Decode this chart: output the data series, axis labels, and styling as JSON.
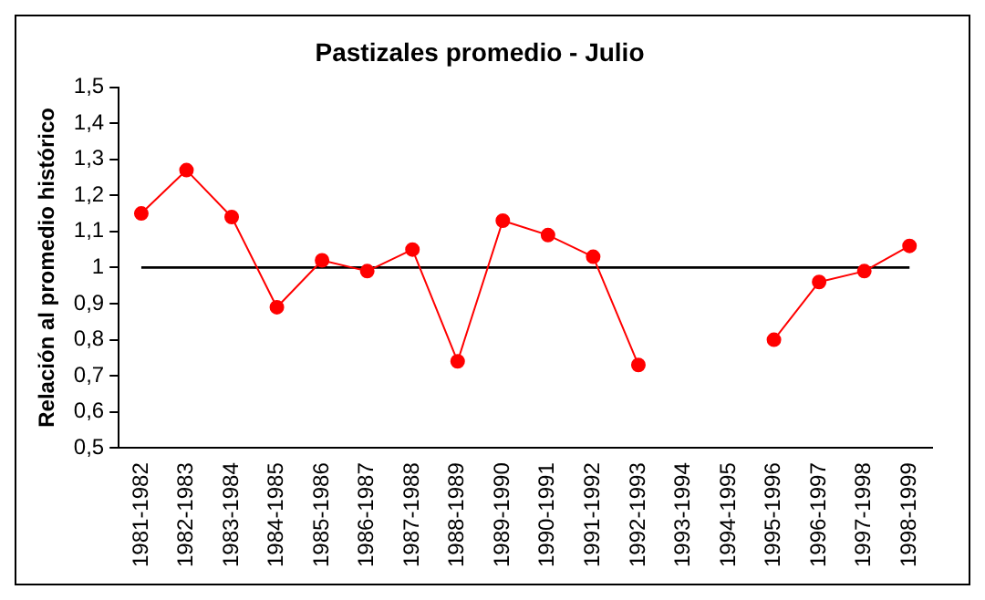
{
  "chart_data": {
    "type": "line",
    "title": "Pastizales promedio - Julio",
    "ylabel": "Relación al promedio histórico",
    "categories": [
      "1981-1982",
      "1982-1983",
      "1983-1984",
      "1984-1985",
      "1985-1986",
      "1986-1987",
      "1987-1988",
      "1988-1989",
      "1989-1990",
      "1990-1991",
      "1991-1992",
      "1992-1993",
      "1993-1994",
      "1994-1995",
      "1995-1996",
      "1996-1997",
      "1997-1998",
      "1998-1999"
    ],
    "series": [
      {
        "color": "#ff0000",
        "values": [
          1.15,
          1.27,
          1.14,
          0.89,
          1.02,
          0.99,
          1.05,
          0.74,
          1.13,
          1.09,
          1.03,
          0.73,
          null,
          null,
          0.8,
          0.96,
          0.99,
          1.06
        ]
      }
    ],
    "ylim": [
      0.5,
      1.5
    ],
    "yticks": [
      {
        "value": 0.5,
        "label": "0,5"
      },
      {
        "value": 0.6,
        "label": "0,6"
      },
      {
        "value": 0.7,
        "label": "0,7"
      },
      {
        "value": 0.8,
        "label": "0,8"
      },
      {
        "value": 0.9,
        "label": "0,9"
      },
      {
        "value": 1,
        "label": "1"
      },
      {
        "value": 1.1,
        "label": "1,1"
      },
      {
        "value": 1.2,
        "label": "1,2"
      },
      {
        "value": 1.3,
        "label": "1,3"
      },
      {
        "value": 1.4,
        "label": "1,4"
      },
      {
        "value": 1.5,
        "label": "1,5"
      }
    ],
    "ref_lines": [
      {
        "axis": "y",
        "value": 1,
        "color": "#000000"
      }
    ],
    "grid": false,
    "legend": false,
    "marker": "circle",
    "line_style": "solid"
  }
}
